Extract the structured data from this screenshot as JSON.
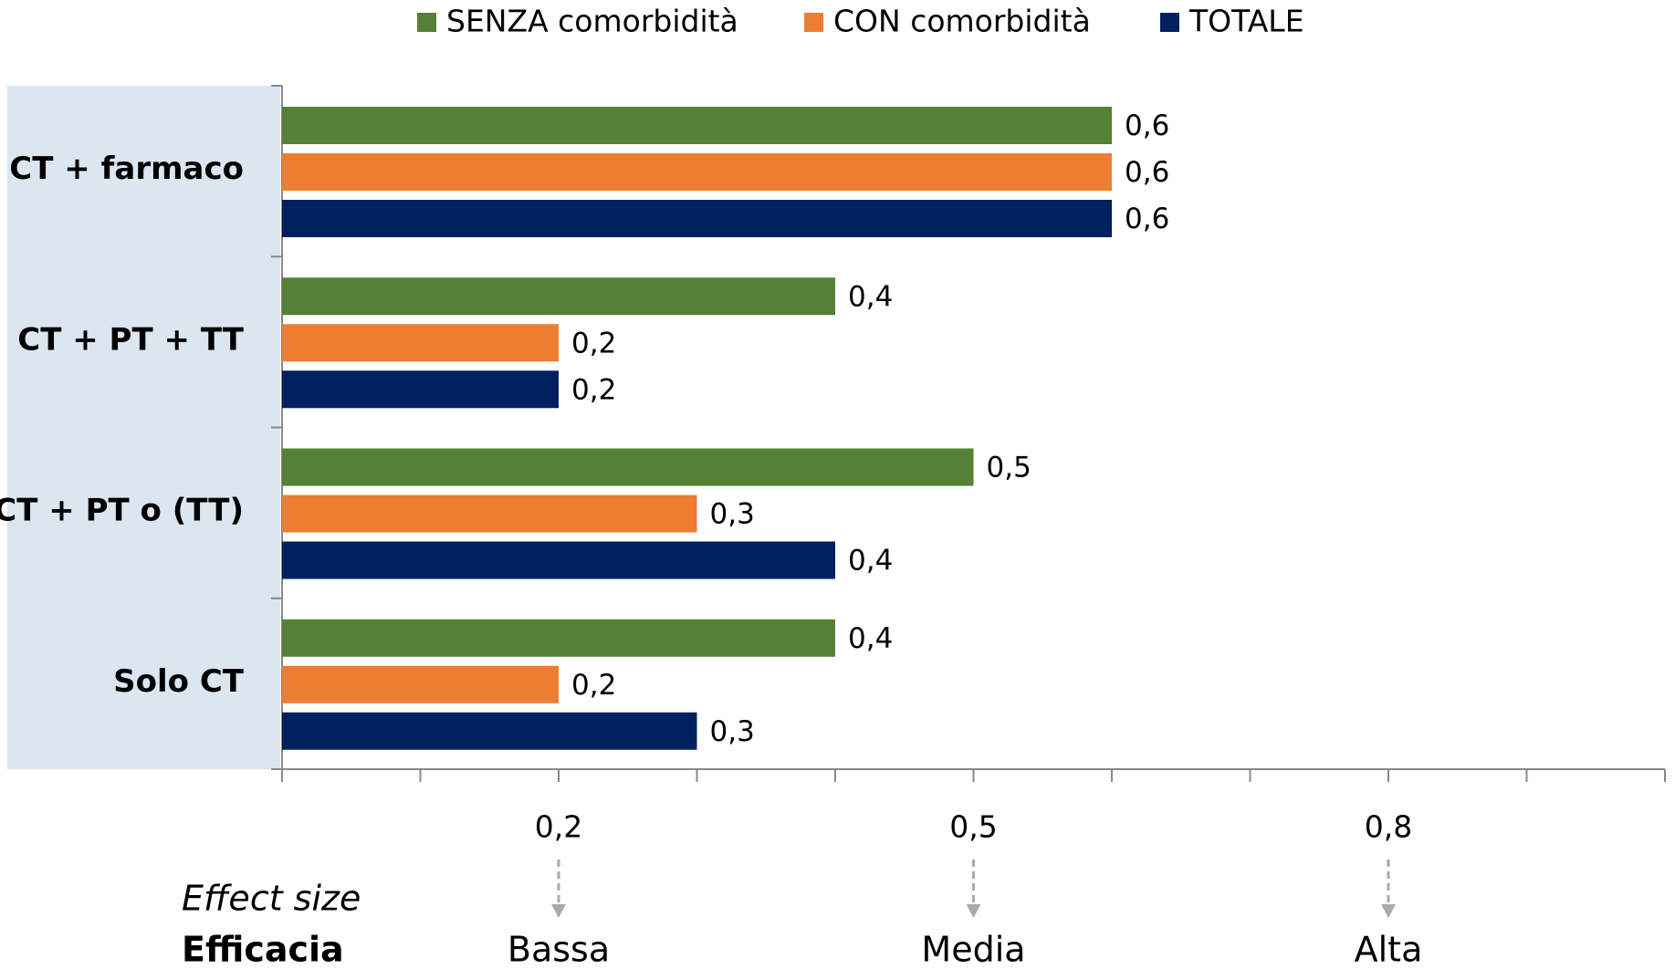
{
  "chart_data": {
    "type": "barh",
    "categories": [
      "CT + farmaco",
      "CT + PT + TT",
      "CT + PT o (TT)",
      "Solo CT"
    ],
    "series": [
      {
        "name": "SENZA comorbidità",
        "color": "#538135",
        "values": [
          0.6,
          0.4,
          0.5,
          0.4
        ],
        "value_labels": [
          "0,6",
          "0,4",
          "0,5",
          "0,4"
        ]
      },
      {
        "name": "CON comorbidità",
        "color": "#ed7d31",
        "values": [
          0.6,
          0.2,
          0.3,
          0.2
        ],
        "value_labels": [
          "0,6",
          "0,2",
          "0,3",
          "0,2"
        ]
      },
      {
        "name": "TOTALE",
        "color": "#002060",
        "values": [
          0.6,
          0.2,
          0.4,
          0.3
        ],
        "value_labels": [
          "0,6",
          "0,2",
          "0,4",
          "0,3"
        ]
      }
    ],
    "xlim": [
      0,
      1.0
    ],
    "xticks": [
      {
        "value": 0.2,
        "label": "0,2"
      },
      {
        "value": 0.5,
        "label": "0,5"
      },
      {
        "value": 0.8,
        "label": "0,8"
      }
    ],
    "minor_xticks": [
      0,
      0.1,
      0.2,
      0.3,
      0.4,
      0.5,
      0.6,
      0.7,
      0.8,
      0.9,
      1.0
    ],
    "x_title": "Effect size",
    "row_title": "Efficacia",
    "efficacy_labels": [
      "Bassa",
      "Media",
      "Alta"
    ],
    "legend": "top"
  }
}
